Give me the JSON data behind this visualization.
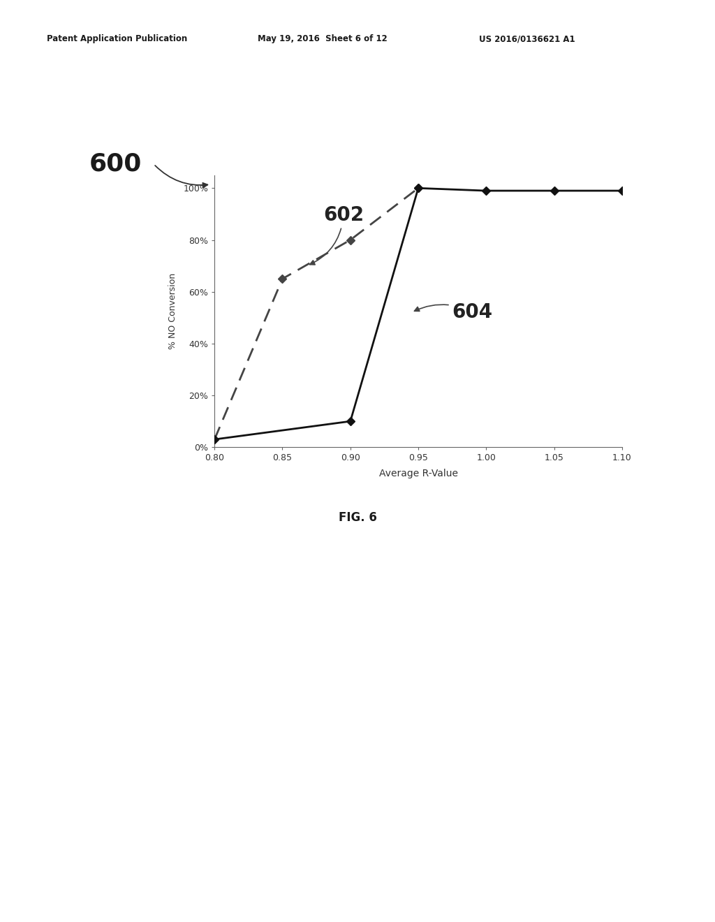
{
  "line602_x": [
    0.8,
    0.85,
    0.9,
    0.95
  ],
  "line602_y": [
    0.03,
    0.65,
    0.8,
    1.0
  ],
  "line604_x": [
    0.8,
    0.9,
    0.95,
    1.0,
    1.05,
    1.1
  ],
  "line604_y": [
    0.03,
    0.1,
    1.0,
    0.99,
    0.99,
    0.99
  ],
  "line602_color": "#444444",
  "line604_color": "#111111",
  "xlabel": "Average R-Value",
  "ylabel": "% NO Conversion",
  "xlim": [
    0.8,
    1.1
  ],
  "ylim": [
    0.0,
    1.05
  ],
  "xticks": [
    0.8,
    0.85,
    0.9,
    0.95,
    1.0,
    1.05,
    1.1
  ],
  "yticks": [
    0.0,
    0.2,
    0.4,
    0.6,
    0.8,
    1.0
  ],
  "ytick_labels": [
    "0%",
    "20%",
    "40%",
    "60%",
    "80%",
    "100%"
  ],
  "xtick_labels": [
    "0.80",
    "0.85",
    "0.90",
    "0.95",
    "1.00",
    "1.05",
    "1.10"
  ],
  "label_602": "602",
  "label_604": "604",
  "figure_label": "600",
  "fig_caption": "FIG. 6",
  "header_left": "Patent Application Publication",
  "header_mid": "May 19, 2016  Sheet 6 of 12",
  "header_right": "US 2016/0136621 A1",
  "background_color": "#ffffff",
  "text_color": "#222222"
}
